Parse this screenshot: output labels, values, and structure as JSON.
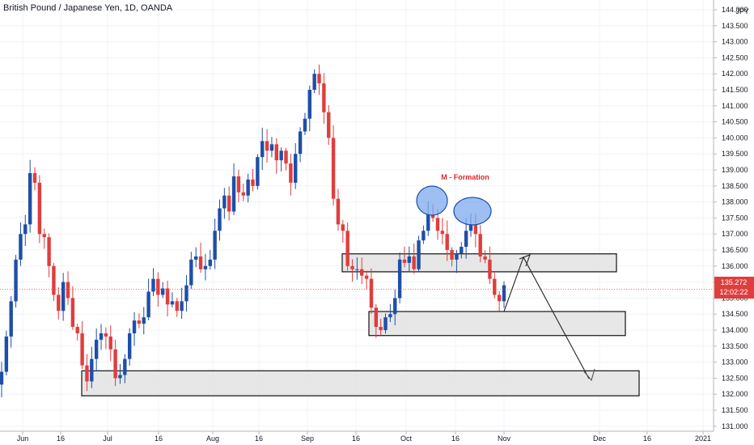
{
  "symbol_title": "British Pound / Japanese Yen, 1D, OANDA",
  "currency_label": "JPY",
  "price_badge": {
    "price": "135.272",
    "countdown": "12:02:22"
  },
  "colors": {
    "up": "#1e4fa8",
    "down": "#e03d3d",
    "zone_fill": "#e3e3e3",
    "zone_stroke": "#111111",
    "ellipse_fill": "#7ea9ee",
    "ellipse_stroke": "#1e4fa8",
    "badge": "#e03d3d"
  },
  "chart_data": {
    "type": "candlestick",
    "ylim": [
      130.75,
      144.35
    ],
    "y_ticks": [
      "131.000",
      "131.500",
      "132.000",
      "132.500",
      "133.000",
      "133.500",
      "134.000",
      "134.500",
      "135.000",
      "135.500",
      "136.000",
      "136.500",
      "137.000",
      "137.500",
      "138.000",
      "138.500",
      "139.000",
      "139.500",
      "140.000",
      "140.500",
      "141.000",
      "141.500",
      "142.000",
      "142.500",
      "143.000",
      "143.500",
      "144.000"
    ],
    "x_ticks": [
      "Jun",
      "16",
      "Jul",
      "16",
      "Aug",
      "16",
      "Sep",
      "16",
      "Oct",
      "16",
      "Nov",
      "Dec",
      "16",
      "2021"
    ],
    "close_series": [
      132.7,
      133.8,
      134.9,
      136.2,
      137.0,
      137.3,
      138.9,
      138.6,
      137.0,
      136.9,
      136.0,
      135.1,
      134.6,
      135.5,
      135.0,
      134.1,
      133.9,
      132.9,
      132.4,
      133.1,
      133.7,
      133.9,
      133.8,
      133.4,
      132.5,
      132.6,
      133.1,
      133.9,
      134.3,
      134.2,
      134.4,
      135.2,
      135.6,
      135.1,
      135.3,
      134.8,
      134.9,
      134.6,
      134.9,
      135.4,
      136.2,
      136.3,
      135.9,
      136.0,
      136.2,
      137.1,
      137.8,
      138.2,
      137.7,
      138.8,
      138.3,
      138.2,
      138.7,
      138.5,
      139.4,
      139.9,
      139.6,
      139.8,
      139.3,
      139.6,
      139.2,
      138.6,
      139.5,
      140.2,
      140.6,
      141.5,
      142.0,
      141.7,
      140.8,
      140.0,
      138.1,
      137.3,
      137.1,
      136.0,
      135.9,
      135.9,
      135.7,
      135.6,
      134.7,
      134.1,
      134.0,
      134.4,
      134.5,
      135.0,
      136.2,
      136.1,
      136.3,
      135.9,
      136.8,
      137.1,
      137.6,
      137.5,
      137.1,
      137.0,
      136.5,
      136.2,
      136.4,
      136.6,
      137.1,
      137.3,
      137.0,
      136.3,
      136.2,
      135.6,
      135.1,
      134.9,
      135.4
    ],
    "zones": [
      {
        "price_low": 135.82,
        "price_high": 136.38
      },
      {
        "price_low": 133.83,
        "price_high": 134.58
      },
      {
        "price_low": 131.95,
        "price_high": 132.73
      }
    ],
    "annotations": [
      {
        "text": "M - Formation"
      }
    ],
    "current_price": 135.272
  }
}
